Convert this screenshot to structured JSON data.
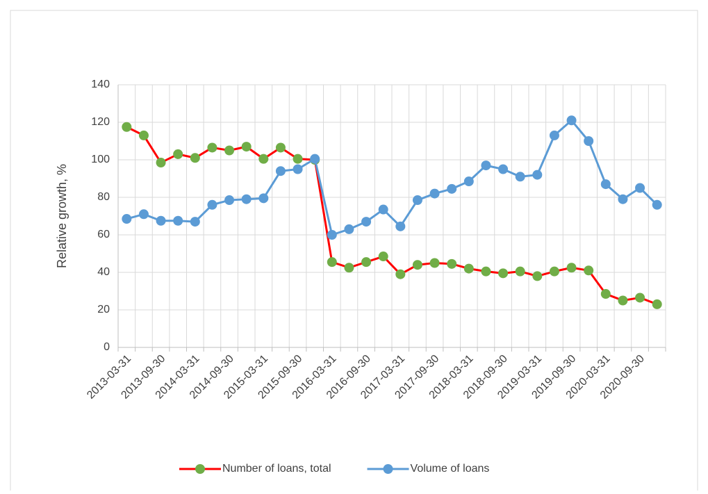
{
  "chart_data": {
    "type": "line",
    "y_label": "Relative growth, %",
    "categories": [
      "2013-03-31",
      null,
      "2013-09-30",
      null,
      "2014-03-31",
      null,
      "2014-09-30",
      null,
      "2015-03-31",
      null,
      "2015-09-30",
      null,
      "2016-03-31",
      null,
      "2016-09-30",
      null,
      "2017-03-31",
      null,
      "2017-09-30",
      null,
      "2018-03-31",
      null,
      "2018-09-30",
      null,
      "2019-03-31",
      null,
      "2019-09-30",
      null,
      "2020-03-31",
      null,
      "2020-09-30",
      null
    ],
    "series": [
      {
        "name": "Number of loans, total",
        "color": "#ff0000",
        "marker_color": "#70ad47",
        "values": [
          117.5,
          113,
          98.5,
          103,
          101,
          106.5,
          105,
          107,
          100.5,
          106.5,
          100.5,
          100,
          45.5,
          42.5,
          45.5,
          48.5,
          39,
          44,
          45,
          44.5,
          42,
          40.5,
          39.5,
          40.5,
          38,
          40.5,
          42.5,
          41,
          28.5,
          25,
          26.5,
          23
        ]
      },
      {
        "name": "Volume of loans",
        "color": "#5b9bd5",
        "marker_color": "#5b9bd5",
        "values": [
          68.5,
          71,
          67.5,
          67.5,
          67,
          76,
          78.5,
          79,
          79.5,
          94,
          95,
          100.5,
          60,
          63,
          67,
          73.5,
          64.5,
          78.5,
          82,
          84.5,
          88.5,
          97,
          95,
          91,
          92,
          113,
          121,
          110,
          87,
          79,
          85,
          76
        ]
      }
    ],
    "ylim": [
      0,
      140
    ],
    "yticks": [
      0,
      20,
      40,
      60,
      80,
      100,
      120,
      140
    ],
    "grid": true,
    "legend": "bottom"
  }
}
